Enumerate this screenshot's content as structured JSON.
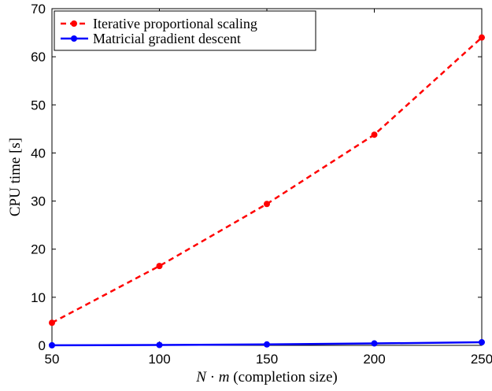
{
  "chart_data": {
    "type": "line",
    "title": "",
    "xlabel": "N · m (completion size)",
    "ylabel": "CPU time [s]",
    "xlim": [
      50,
      250
    ],
    "ylim": [
      0,
      70
    ],
    "xticks": [
      50,
      100,
      150,
      200,
      250
    ],
    "yticks": [
      0,
      10,
      20,
      30,
      40,
      50,
      60,
      70
    ],
    "grid": false,
    "legend_position": "top-left",
    "x": [
      50,
      100,
      150,
      200,
      250
    ],
    "series": [
      {
        "name": "Iterative proportional scaling",
        "values": [
          4.7,
          16.5,
          29.4,
          43.8,
          64.0
        ],
        "color": "#ff0000",
        "line_style": "dashed",
        "marker": "circle"
      },
      {
        "name": "Matricial gradient descent",
        "values": [
          0.02,
          0.08,
          0.2,
          0.4,
          0.65
        ],
        "color": "#0000ff",
        "line_style": "solid",
        "marker": "circle"
      }
    ]
  }
}
